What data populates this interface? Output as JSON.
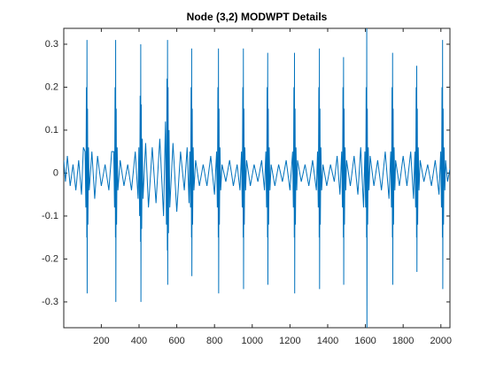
{
  "chart_data": {
    "type": "line",
    "title": "Node (3,2) MODWPT Details",
    "xlim": [
      1,
      2048
    ],
    "ylim": [
      -0.36,
      0.337
    ],
    "xticks": [
      200,
      400,
      600,
      800,
      1000,
      1200,
      1400,
      1600,
      1800,
      2000
    ],
    "yticks": [
      -0.3,
      -0.2,
      -0.1,
      0,
      0.1,
      0.2,
      0.3
    ],
    "series": [
      {
        "color": "#0072bd",
        "x": [
          1,
          10,
          20,
          35,
          50,
          65,
          80,
          95,
          105,
          114,
          118,
          121,
          123,
          124,
          125,
          127,
          129,
          132,
          136,
          150,
          165,
          180,
          200,
          220,
          240,
          255,
          266,
          270,
          273,
          275,
          276,
          277,
          279,
          281,
          284,
          288,
          300,
          320,
          340,
          360,
          380,
          395,
          399,
          403,
          406,
          408,
          409,
          410,
          412,
          414,
          417,
          421,
          435,
          450,
          470,
          490,
          510,
          530,
          540,
          541,
          545,
          548,
          550,
          551,
          552,
          554,
          556,
          559,
          563,
          580,
          600,
          620,
          640,
          655,
          665,
          669,
          673,
          676,
          678,
          679,
          680,
          682,
          684,
          687,
          691,
          700,
          720,
          740,
          760,
          780,
          800,
          811,
          815,
          818,
          820,
          821,
          822,
          824,
          826,
          829,
          833,
          840,
          860,
          880,
          900,
          920,
          935,
          943,
          947,
          950,
          952,
          953,
          954,
          956,
          958,
          961,
          965,
          970,
          990,
          1010,
          1030,
          1050,
          1065,
          1072,
          1076,
          1079,
          1081,
          1082,
          1083,
          1085,
          1087,
          1090,
          1094,
          1100,
          1120,
          1140,
          1160,
          1180,
          1200,
          1214,
          1218,
          1221,
          1223,
          1224,
          1225,
          1227,
          1229,
          1232,
          1236,
          1240,
          1260,
          1280,
          1300,
          1320,
          1340,
          1346,
          1350,
          1353,
          1355,
          1356,
          1357,
          1359,
          1361,
          1364,
          1368,
          1375,
          1395,
          1415,
          1435,
          1450,
          1465,
          1474,
          1478,
          1481,
          1483,
          1484,
          1485,
          1487,
          1489,
          1492,
          1496,
          1500,
          1520,
          1540,
          1560,
          1575,
          1590,
          1597,
          1601,
          1604,
          1606,
          1607,
          1608,
          1610,
          1612,
          1615,
          1619,
          1625,
          1645,
          1665,
          1685,
          1705,
          1725,
          1734,
          1738,
          1741,
          1743,
          1744,
          1745,
          1747,
          1749,
          1752,
          1756,
          1760,
          1780,
          1800,
          1820,
          1840,
          1855,
          1862,
          1866,
          1869,
          1871,
          1872,
          1873,
          1875,
          1877,
          1880,
          1884,
          1890,
          1910,
          1930,
          1950,
          1970,
          1990,
          1999,
          2003,
          2006,
          2008,
          2009,
          2010,
          2012,
          2014,
          2017,
          2021,
          2025,
          2035,
          2048
        ],
        "values": [
          0.03,
          -0.02,
          0.04,
          -0.03,
          0.02,
          -0.04,
          0.03,
          -0.05,
          0.06,
          0.05,
          -0.08,
          0.2,
          -0.15,
          0.31,
          -0.28,
          0.15,
          -0.12,
          0.06,
          -0.04,
          0.05,
          -0.06,
          0.04,
          -0.03,
          0.02,
          -0.04,
          0.05,
          0.05,
          -0.08,
          0.2,
          -0.15,
          0.31,
          -0.3,
          0.15,
          -0.12,
          0.06,
          -0.04,
          0.03,
          -0.03,
          0.02,
          -0.04,
          0.05,
          -0.06,
          0.06,
          -0.1,
          0.18,
          -0.16,
          0.3,
          -0.3,
          0.16,
          -0.13,
          0.08,
          -0.06,
          0.07,
          -0.08,
          0.06,
          -0.07,
          0.08,
          -0.1,
          0.12,
          0.08,
          -0.12,
          0.22,
          -0.18,
          0.31,
          -0.26,
          0.2,
          -0.14,
          0.1,
          -0.08,
          0.07,
          -0.09,
          0.05,
          -0.04,
          0.06,
          -0.07,
          0.05,
          -0.08,
          0.2,
          -0.15,
          0.29,
          -0.24,
          0.15,
          -0.12,
          0.06,
          -0.04,
          0.03,
          -0.03,
          0.02,
          -0.03,
          0.04,
          -0.05,
          0.05,
          -0.08,
          0.2,
          -0.15,
          0.29,
          -0.28,
          0.15,
          -0.12,
          0.06,
          -0.04,
          0.02,
          -0.02,
          0.03,
          -0.03,
          0.02,
          -0.04,
          0.05,
          -0.08,
          0.2,
          -0.15,
          0.29,
          -0.27,
          0.15,
          -0.12,
          0.06,
          -0.04,
          0.03,
          -0.03,
          0.02,
          -0.02,
          0.03,
          -0.04,
          0.05,
          -0.08,
          0.2,
          -0.15,
          0.28,
          -0.26,
          0.15,
          -0.12,
          0.06,
          -0.04,
          0.02,
          -0.03,
          0.02,
          -0.02,
          0.03,
          -0.04,
          0.05,
          -0.08,
          0.2,
          -0.15,
          0.28,
          -0.28,
          0.15,
          -0.12,
          0.06,
          -0.04,
          0.03,
          -0.02,
          0.02,
          -0.03,
          0.03,
          -0.04,
          0.05,
          -0.08,
          0.2,
          -0.15,
          0.29,
          -0.27,
          0.15,
          -0.12,
          0.06,
          -0.04,
          0.02,
          -0.03,
          0.02,
          -0.02,
          0.04,
          -0.05,
          0.05,
          -0.08,
          0.2,
          -0.15,
          0.27,
          -0.26,
          0.15,
          -0.12,
          0.06,
          -0.04,
          0.03,
          -0.03,
          0.04,
          -0.05,
          0.06,
          -0.08,
          0.05,
          -0.08,
          0.2,
          -0.15,
          0.34,
          -0.36,
          0.15,
          -0.12,
          0.06,
          -0.04,
          0.04,
          -0.03,
          0.03,
          -0.04,
          0.05,
          -0.06,
          0.05,
          -0.08,
          0.2,
          -0.15,
          0.28,
          -0.26,
          0.15,
          -0.12,
          0.06,
          -0.04,
          0.03,
          -0.03,
          0.04,
          -0.03,
          0.05,
          -0.06,
          0.05,
          -0.08,
          0.2,
          -0.15,
          0.25,
          -0.23,
          0.15,
          -0.12,
          0.06,
          -0.04,
          0.03,
          -0.02,
          0.02,
          -0.03,
          0.03,
          -0.05,
          0.05,
          -0.08,
          0.2,
          -0.15,
          0.31,
          -0.27,
          0.15,
          -0.12,
          0.06,
          -0.04,
          0.03,
          -0.02,
          0.01
        ]
      }
    ]
  }
}
